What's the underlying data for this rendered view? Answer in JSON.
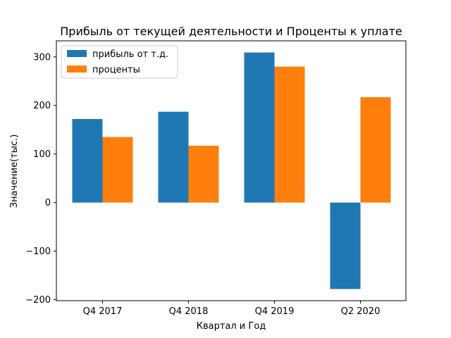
{
  "chart_data": {
    "type": "bar",
    "title": "Прибыль от текущей деятельности и Проценты к уплате",
    "xlabel": "Квартал и Год",
    "ylabel": "Значение(тыс.)",
    "categories": [
      "Q4 2017",
      "Q4 2018",
      "Q4 2019",
      "Q2 2020"
    ],
    "series": [
      {
        "name": "прибыль от т.д.",
        "values": [
          172,
          187,
          309,
          -178
        ],
        "color": "#1f77b4"
      },
      {
        "name": "проценты",
        "values": [
          135,
          117,
          280,
          217
        ],
        "color": "#ff7f0e"
      }
    ],
    "ylim": [
      -202,
      333
    ],
    "yticks": [
      -200,
      -100,
      0,
      100,
      200,
      300
    ],
    "ytick_labels": [
      "−200",
      "−100",
      "0",
      "100",
      "200",
      "300"
    ],
    "grid": false,
    "legend_position": "top-left"
  }
}
